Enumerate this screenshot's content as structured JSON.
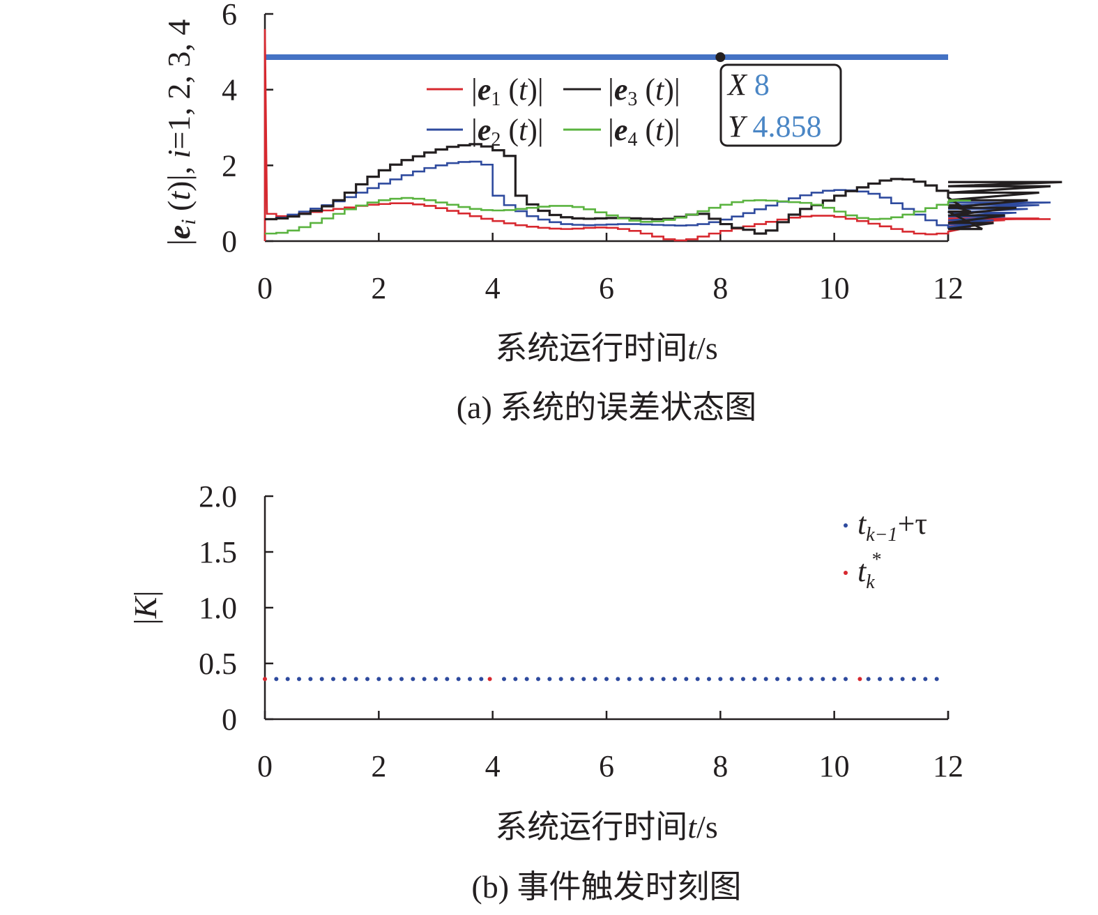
{
  "chart_data": [
    {
      "type": "line",
      "caption": "(a) 系统的误差状态图",
      "xlabel": "系统运行时间t/s",
      "ylabel": "|e_i (t)|, i=1, 2, 3, 4",
      "xlim": [
        0,
        12
      ],
      "ylim": [
        0,
        6
      ],
      "x_ticks": [
        "0",
        "2",
        "4",
        "6",
        "8",
        "10",
        "12"
      ],
      "y_ticks": [
        "0",
        "2",
        "4",
        "6"
      ],
      "step_interval": 0.2,
      "legend_position": "top-center",
      "series": [
        {
          "name": "|e1 (t)|",
          "label_main": "e",
          "label_sub": "1",
          "color": "#d7282f",
          "values": [
            0.72,
            0.66,
            0.69,
            0.73,
            0.77,
            0.81,
            0.85,
            0.89,
            0.93,
            0.96,
            0.98,
            1.0,
            1.0,
            0.97,
            0.93,
            0.87,
            0.8,
            0.73,
            0.66,
            0.59,
            0.53,
            0.47,
            0.42,
            0.38,
            0.35,
            0.33,
            0.32,
            0.33,
            0.35,
            0.36,
            0.35,
            0.32,
            0.27,
            0.2,
            0.12,
            0.05,
            0.02,
            0.05,
            0.12,
            0.2,
            0.27,
            0.33,
            0.39,
            0.45,
            0.51,
            0.57,
            0.62,
            0.65,
            0.67,
            0.67,
            0.64,
            0.59,
            0.53,
            0.46,
            0.39,
            0.32,
            0.25,
            0.2,
            0.18,
            0.2,
            0.25,
            0.31,
            0.38,
            0.44,
            0.5,
            0.55,
            0.58,
            0.6,
            0.6,
            0.58
          ]
        },
        {
          "name": "|e2 (t)|",
          "label_main": "e",
          "label_sub": "2",
          "color": "#2e4a9e",
          "values": [
            0.58,
            0.62,
            0.7,
            0.78,
            0.86,
            0.95,
            1.05,
            1.16,
            1.28,
            1.4,
            1.52,
            1.63,
            1.74,
            1.84,
            1.93,
            2.0,
            2.06,
            2.09,
            2.1,
            2.02,
            1.2,
            0.95,
            0.79,
            0.66,
            0.57,
            0.5,
            0.45,
            0.43,
            0.42,
            0.43,
            0.44,
            0.45,
            0.45,
            0.44,
            0.43,
            0.42,
            0.41,
            0.42,
            0.45,
            0.5,
            0.57,
            0.65,
            0.74,
            0.84,
            0.94,
            1.04,
            1.13,
            1.21,
            1.28,
            1.33,
            1.35,
            1.34,
            1.31,
            1.25,
            1.15,
            1.0,
            0.85,
            0.7,
            0.55,
            0.42,
            0.35,
            0.34,
            0.38,
            0.45,
            0.55,
            0.65,
            0.75,
            0.85,
            0.95,
            1.02
          ]
        },
        {
          "name": "|e3 (t)|",
          "label_main": "e",
          "label_sub": "3",
          "color": "#231f20",
          "values": [
            0.58,
            0.6,
            0.65,
            0.72,
            0.8,
            0.92,
            1.08,
            1.28,
            1.5,
            1.7,
            1.87,
            2.02,
            2.14,
            2.24,
            2.34,
            2.42,
            2.49,
            2.53,
            2.56,
            2.5,
            2.4,
            2.25,
            1.2,
            0.97,
            0.8,
            0.69,
            0.63,
            0.6,
            0.59,
            0.6,
            0.61,
            0.61,
            0.6,
            0.59,
            0.58,
            0.59,
            0.64,
            0.7,
            0.72,
            0.59,
            0.45,
            0.35,
            0.3,
            0.2,
            0.28,
            0.5,
            0.7,
            0.85,
            0.95,
            1.07,
            1.2,
            1.32,
            1.42,
            1.52,
            1.6,
            1.64,
            1.63,
            1.57,
            1.47,
            1.33,
            1.15,
            0.95,
            0.78,
            0.32,
            0.48,
            0.68,
            0.88,
            1.08,
            1.28,
            1.45,
            1.56
          ]
        },
        {
          "name": "|e4 (t)|",
          "label_main": "e",
          "label_sub": "4",
          "color": "#5ab33f",
          "values": [
            0.2,
            0.22,
            0.28,
            0.37,
            0.48,
            0.6,
            0.72,
            0.84,
            0.94,
            1.02,
            1.08,
            1.12,
            1.14,
            1.12,
            1.08,
            1.02,
            0.96,
            0.9,
            0.85,
            0.82,
            0.81,
            0.82,
            0.85,
            0.88,
            0.91,
            0.93,
            0.93,
            0.9,
            0.84,
            0.76,
            0.68,
            0.6,
            0.54,
            0.51,
            0.52,
            0.56,
            0.62,
            0.7,
            0.79,
            0.88,
            0.96,
            1.03,
            1.07,
            1.08,
            1.07,
            1.05,
            1.03,
            1.01,
            0.96,
            0.88,
            0.78,
            0.68,
            0.61,
            0.58,
            0.59,
            0.63,
            0.7,
            0.78,
            0.87,
            0.96,
            1.04,
            1.08,
            1.07
          ]
        }
      ],
      "initial_spike": {
        "series": "|e1 (t)|",
        "x": 0.0,
        "peak": 5.6
      },
      "reference_line": {
        "y": 4.858,
        "color": "#4472c4"
      },
      "data_tip": {
        "x_label": "X",
        "x_value": "8",
        "y_label": "Y",
        "y_value": "4.858",
        "x": 8,
        "y": 4.858
      }
    },
    {
      "type": "scatter",
      "caption": "(b) 事件触发时刻图",
      "xlabel": "系统运行时间t/s",
      "ylabel": "|K|",
      "xlim": [
        0,
        12
      ],
      "ylim": [
        0,
        2.0
      ],
      "x_ticks": [
        "0",
        "2",
        "4",
        "6",
        "8",
        "10",
        "12"
      ],
      "y_ticks": [
        "0",
        "0.5",
        "1.0",
        "1.5",
        "2.0"
      ],
      "legend_position": "top-right",
      "series": [
        {
          "name": "tk−1+τ",
          "color": "#2e4a9e",
          "y": 0.36,
          "x": [
            0.2,
            0.4,
            0.6,
            0.8,
            1.0,
            1.2,
            1.4,
            1.6,
            1.8,
            2.0,
            2.2,
            2.4,
            2.6,
            2.8,
            3.0,
            3.2,
            3.4,
            3.6,
            3.8,
            4.2,
            4.4,
            4.6,
            4.8,
            5.0,
            5.2,
            5.4,
            5.6,
            5.8,
            6.0,
            6.2,
            6.4,
            6.6,
            6.8,
            7.0,
            7.2,
            7.4,
            7.6,
            7.8,
            8.0,
            8.2,
            8.4,
            8.6,
            8.8,
            9.0,
            9.2,
            9.4,
            9.6,
            9.8,
            10.0,
            10.2,
            10.6,
            10.8,
            11.0,
            11.2,
            11.4,
            11.6,
            11.8
          ]
        },
        {
          "name": "tk*",
          "color": "#d7282f",
          "y": 0.36,
          "x": [
            0.0,
            3.95,
            10.45
          ]
        }
      ],
      "legend_labels": {
        "blue": {
          "base": "t",
          "sub": "k−1",
          "rest": "+τ"
        },
        "red": {
          "base": "t",
          "sub": "k",
          "sup": "*"
        }
      }
    }
  ]
}
